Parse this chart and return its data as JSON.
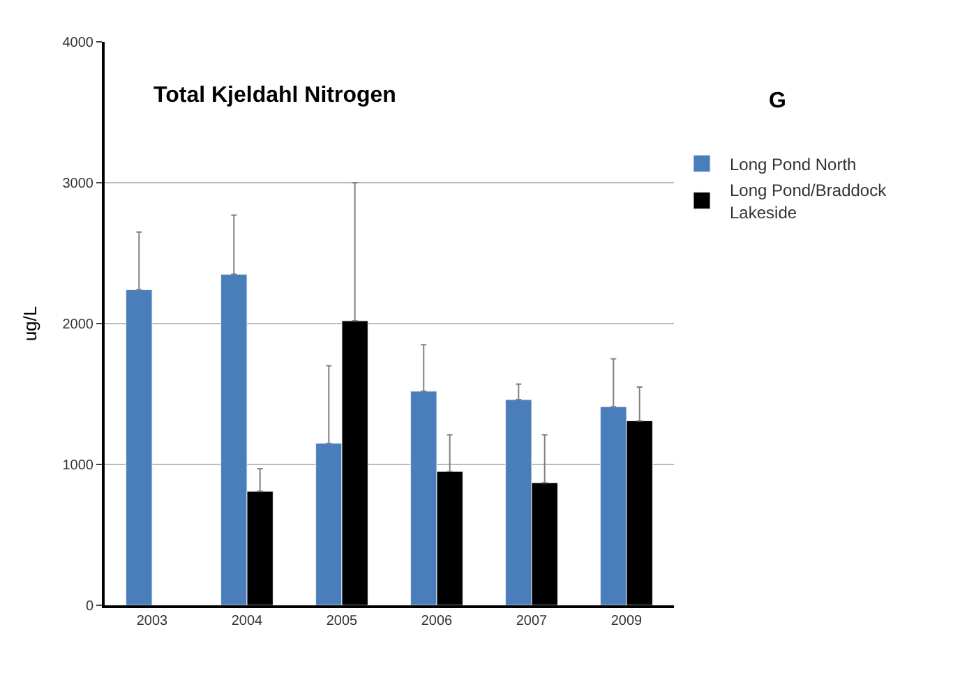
{
  "chart_data": {
    "type": "bar",
    "title": "Total Kjeldahl Nitrogen",
    "ylabel": "ug/L",
    "categories": [
      "2003",
      "2004",
      "2005",
      "2006",
      "2007",
      "2009"
    ],
    "series": [
      {
        "name": "Long Pond North",
        "color": "#4a7ebb",
        "values": [
          2240,
          2350,
          1150,
          1520,
          1460,
          1410
        ],
        "errors": [
          [
            2240,
            2650
          ],
          [
            2350,
            2770
          ],
          [
            1150,
            1700
          ],
          [
            1520,
            1850
          ],
          [
            1460,
            1570
          ],
          [
            1410,
            1750
          ]
        ]
      },
      {
        "name": "Long Pond/Braddock Lakeside",
        "color": "#000000",
        "values": [
          null,
          810,
          2020,
          950,
          870,
          1310
        ],
        "errors": [
          null,
          [
            810,
            970
          ],
          [
            2020,
            3000
          ],
          [
            950,
            1210
          ],
          [
            870,
            1210
          ],
          [
            1310,
            1550
          ]
        ]
      }
    ],
    "annotations": [
      "G"
    ],
    "ylim": [
      0,
      4000
    ],
    "yticks": [
      0,
      1000,
      2000,
      3000,
      4000
    ],
    "grid": "y",
    "legend": "right"
  }
}
